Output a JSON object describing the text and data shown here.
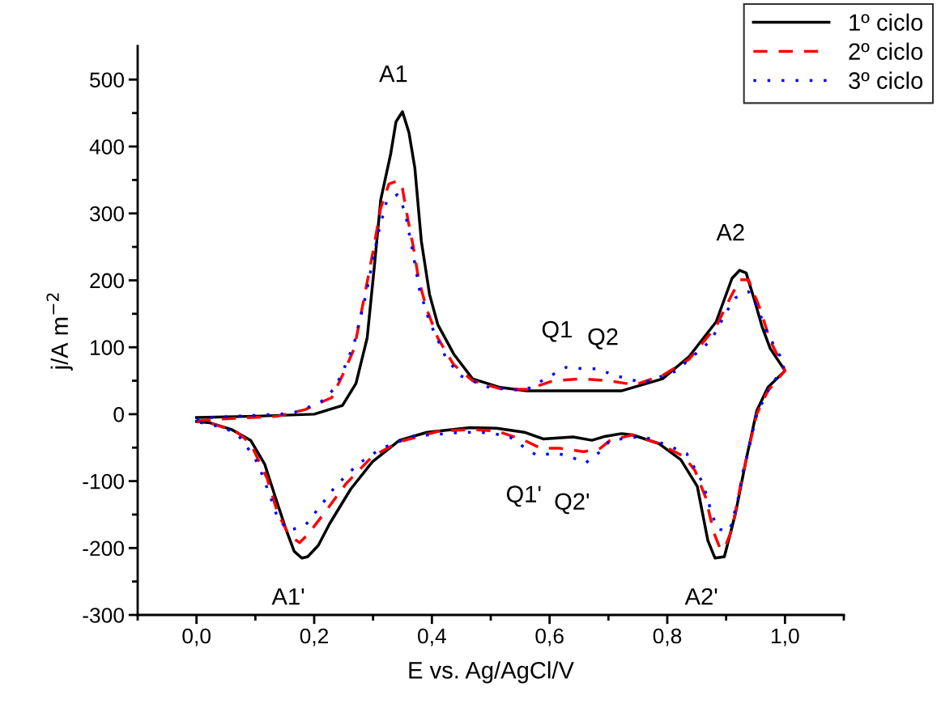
{
  "chart_data": {
    "type": "line",
    "xlabel": "E vs. Ag/AgCl/V",
    "ylabel": "j/A m$^{−2}$",
    "xlim": [
      -0.1,
      1.1
    ],
    "ylim": [
      -300,
      550
    ],
    "xticks": [
      {
        "value": 0,
        "label": "0,0"
      },
      {
        "value": 0.2,
        "label": "0,2"
      },
      {
        "value": 0.4,
        "label": "0,4"
      },
      {
        "value": 0.6,
        "label": "0,6"
      },
      {
        "value": 0.8,
        "label": "0,8"
      },
      {
        "value": 1.0,
        "label": "1,0"
      }
    ],
    "yticks": [
      -300,
      -200,
      -100,
      0,
      100,
      200,
      300,
      400,
      500
    ],
    "grid": false,
    "legend": "top right",
    "series": [
      {
        "name": "1º ciclo",
        "color": "#000000",
        "line_style": "solid",
        "x": [
          0,
          0.1,
          0.2,
          0.248,
          0.271,
          0.29,
          0.302,
          0.313,
          0.33,
          0.339,
          0.35,
          0.361,
          0.371,
          0.382,
          0.396,
          0.41,
          0.437,
          0.469,
          0.516,
          0.561,
          0.654,
          0.723,
          0.792,
          0.837,
          0.883,
          0.91,
          0.923,
          0.934,
          0.948,
          0.961,
          0.975,
          1.0,
          0.971,
          0.952,
          0.934,
          0.916,
          0.897,
          0.881,
          0.869,
          0.851,
          0.823,
          0.786,
          0.741,
          0.723,
          0.695,
          0.672,
          0.64,
          0.589,
          0.557,
          0.51,
          0.465,
          0.392,
          0.345,
          0.299,
          0.262,
          0.226,
          0.207,
          0.189,
          0.179,
          0.166,
          0.152,
          0.134,
          0.116,
          0.092,
          0.06,
          0.023,
          0
        ],
        "values": [
          -5,
          -3,
          0,
          13,
          46,
          114,
          219,
          320,
          389,
          437,
          452,
          421,
          368,
          259,
          179,
          134,
          90,
          53,
          40,
          35,
          35,
          35,
          53,
          86,
          138,
          203,
          215,
          211,
          171,
          131,
          98,
          65,
          40,
          5,
          -68,
          -148,
          -213,
          -215,
          -189,
          -108,
          -68,
          -44,
          -31,
          -29,
          -33,
          -39,
          -34,
          -37,
          -27,
          -21,
          -20,
          -27,
          -39,
          -71,
          -112,
          -164,
          -196,
          -213,
          -215,
          -205,
          -172,
          -124,
          -75,
          -39,
          -23,
          -13,
          -11
        ]
      },
      {
        "name": "2º ciclo",
        "color": "#ff0000",
        "line_style": "dashed",
        "x": [
          0,
          0.047,
          0.138,
          0.185,
          0.23,
          0.248,
          0.268,
          0.286,
          0.3,
          0.313,
          0.327,
          0.343,
          0.35,
          0.359,
          0.368,
          0.378,
          0.392,
          0.41,
          0.437,
          0.469,
          0.516,
          0.561,
          0.607,
          0.654,
          0.699,
          0.745,
          0.792,
          0.837,
          0.883,
          0.91,
          0.924,
          0.938,
          0.957,
          0.975,
          1.0,
          0.971,
          0.952,
          0.934,
          0.924,
          0.91,
          0.897,
          0.89,
          0.879,
          0.865,
          0.847,
          0.828,
          0.786,
          0.741,
          0.703,
          0.686,
          0.658,
          0.617,
          0.585,
          0.557,
          0.51,
          0.465,
          0.414,
          0.345,
          0.299,
          0.254,
          0.217,
          0.189,
          0.175,
          0.157,
          0.138,
          0.12,
          0.092,
          0.069,
          0.023,
          0
        ],
        "values": [
          -10,
          -7,
          -3,
          7,
          25,
          58,
          98,
          179,
          243,
          308,
          344,
          349,
          337,
          292,
          252,
          199,
          155,
          114,
          74,
          50,
          38,
          37,
          50,
          53,
          50,
          44,
          58,
          82,
          131,
          179,
          201,
          201,
          159,
          110,
          65,
          35,
          0,
          -68,
          -108,
          -172,
          -201,
          -201,
          -177,
          -124,
          -84,
          -63,
          -44,
          -31,
          -39,
          -51,
          -56,
          -51,
          -51,
          -39,
          -25,
          -23,
          -25,
          -41,
          -63,
          -104,
          -148,
          -180,
          -192,
          -180,
          -148,
          -96,
          -44,
          -27,
          -13,
          -11
        ]
      },
      {
        "name": "3º ciclo",
        "color": "#0000ff",
        "line_style": "dotted",
        "x": [
          0,
          0.023,
          0.161,
          0.189,
          0.212,
          0.234,
          0.248,
          0.268,
          0.288,
          0.309,
          0.323,
          0.341,
          0.354,
          0.368,
          0.379,
          0.396,
          0.423,
          0.447,
          0.492,
          0.557,
          0.603,
          0.628,
          0.655,
          0.683,
          0.706,
          0.759,
          0.814,
          0.874,
          0.902,
          0.916,
          0.938,
          0.952,
          0.971,
          1.0,
          0.971,
          0.952,
          0.934,
          0.93,
          0.92,
          0.906,
          0.886,
          0.876,
          0.861,
          0.833,
          0.81,
          0.759,
          0.703,
          0.686,
          0.661,
          0.634,
          0.61,
          0.579,
          0.559,
          0.534,
          0.506,
          0.479,
          0.451,
          0.368,
          0.317,
          0.295,
          0.274,
          0.254,
          0.234,
          0.217,
          0.2,
          0.185,
          0.157,
          0.138,
          0.13,
          0.11,
          0.099,
          0.069,
          0.041,
          0
        ],
        "values": [
          -8,
          -5,
          1,
          10,
          19,
          38,
          62,
          106,
          179,
          271,
          318,
          328,
          304,
          240,
          186,
          138,
          86,
          58,
          41,
          35,
          58,
          70,
          68,
          68,
          59,
          47,
          64,
          110,
          155,
          174,
          183,
          162,
          119,
          74,
          35,
          0,
          -68,
          -80,
          -128,
          -174,
          -172,
          -150,
          -104,
          -59,
          -50,
          -33,
          -39,
          -56,
          -73,
          -63,
          -58,
          -62,
          -51,
          -35,
          -29,
          -27,
          -27,
          -33,
          -50,
          -62,
          -75,
          -92,
          -110,
          -130,
          -149,
          -166,
          -174,
          -156,
          -134,
          -87,
          -65,
          -29,
          -19,
          -11
        ]
      }
    ],
    "annotations": [
      {
        "text": "A1",
        "x": 0.35,
        "y": 452
      },
      {
        "text": "A2",
        "x": 0.923,
        "y": 215
      },
      {
        "text": "Q1",
        "x": 0.628,
        "y": 70
      },
      {
        "text": "Q2",
        "x": 0.706,
        "y": 59
      },
      {
        "text": "Q1'",
        "x": 0.579,
        "y": -62
      },
      {
        "text": "Q2'",
        "x": 0.661,
        "y": -73
      },
      {
        "text": "A1'",
        "x": 0.179,
        "y": -215
      },
      {
        "text": "A2'",
        "x": 0.881,
        "y": -215
      }
    ]
  }
}
